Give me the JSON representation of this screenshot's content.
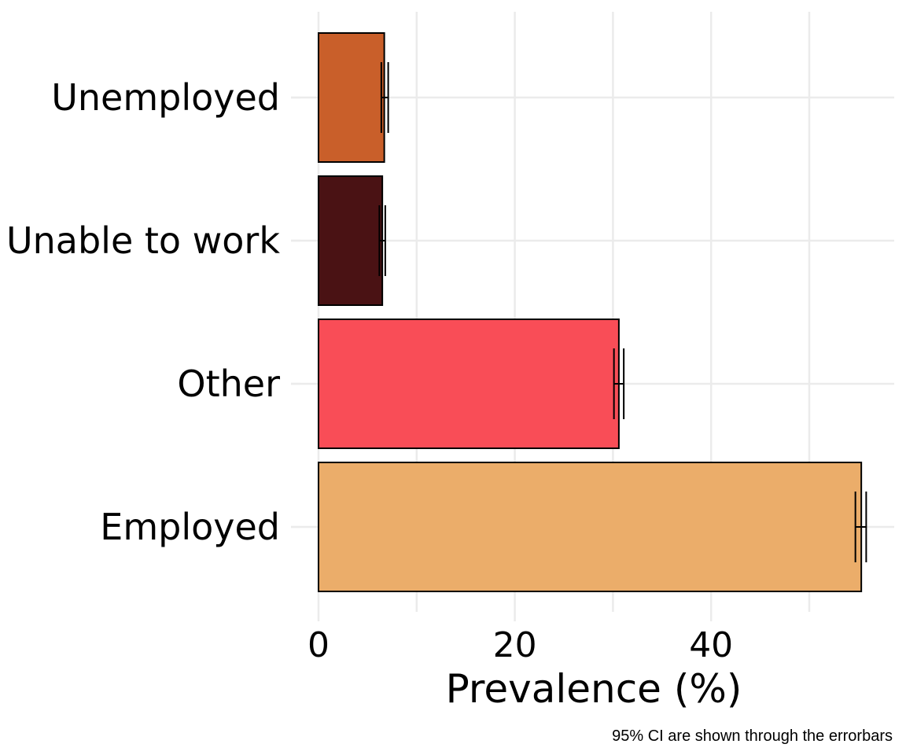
{
  "chart_data": {
    "type": "bar",
    "orientation": "horizontal",
    "categories": [
      "Employed",
      "Other",
      "Unable to work",
      "Unemployed"
    ],
    "values": [
      55.3,
      30.6,
      6.5,
      6.7
    ],
    "ci_lower": [
      54.7,
      30.1,
      6.2,
      6.4
    ],
    "ci_upper": [
      55.8,
      31.1,
      6.8,
      7.1
    ],
    "bar_colors": [
      "#ebad6a",
      "#f94d57",
      "#4a1214",
      "#c95f2a"
    ],
    "xlabel": "Prevalence (%)",
    "ylabel": "",
    "xlim": [
      0,
      58
    ],
    "x_ticks": [
      0,
      20,
      40
    ],
    "x_ticks_labels": [
      "0",
      "20",
      "40"
    ],
    "grid": true,
    "caption": "95% CI are shown through the errorbars"
  }
}
